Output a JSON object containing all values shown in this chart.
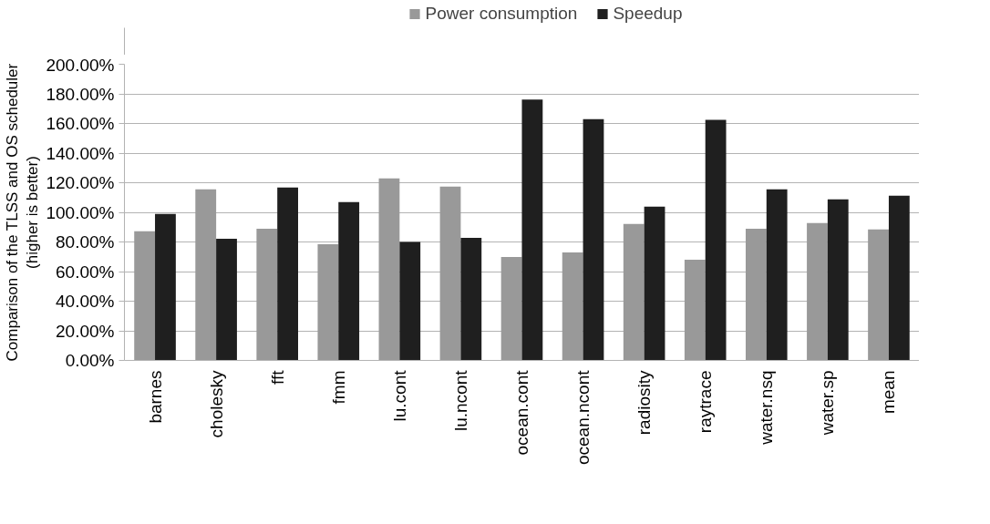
{
  "chart_data": {
    "type": "bar",
    "ylabel": "Comparison of the TLSS and OS scheduler\n(higher is better)",
    "categories": [
      "barnes",
      "cholesky",
      "fft",
      "fmm",
      "lu.cont",
      "lu.ncont",
      "ocean.cont",
      "ocean.ncont",
      "radiosity",
      "raytrace",
      "water.nsq",
      "water.sp",
      "mean"
    ],
    "series": [
      {
        "name": "Power consumption",
        "color": "#999999",
        "values": [
          87.2,
          115.5,
          89.0,
          78.5,
          122.9,
          117.4,
          69.9,
          73.0,
          92.1,
          68.0,
          89.0,
          92.7,
          88.4
        ]
      },
      {
        "name": "Speedup",
        "color": "#1f1f1f",
        "values": [
          98.9,
          82.2,
          116.8,
          106.9,
          80.0,
          82.8,
          176.2,
          163.0,
          103.8,
          162.4,
          115.5,
          108.7,
          111.2
        ]
      }
    ],
    "ylim": [
      0,
      200
    ],
    "yticks": [
      {
        "value": 0,
        "label": "0.00%"
      },
      {
        "value": 20,
        "label": "20.00%"
      },
      {
        "value": 40,
        "label": "40.00%"
      },
      {
        "value": 60,
        "label": "60.00%"
      },
      {
        "value": 80,
        "label": "80.00%"
      },
      {
        "value": 100,
        "label": "100.00%"
      },
      {
        "value": 120,
        "label": "120.00%"
      },
      {
        "value": 140,
        "label": "140.00%"
      },
      {
        "value": 160,
        "label": "160.00%"
      },
      {
        "value": 180,
        "label": "180.00%"
      },
      {
        "value": 200,
        "label": "200.00%"
      }
    ],
    "grid": "y",
    "legend": "top"
  }
}
